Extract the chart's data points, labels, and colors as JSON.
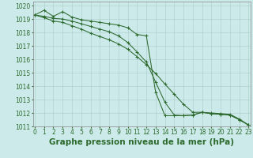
{
  "title": "Graphe pression niveau de la mer (hPa)",
  "bg_color": "#cceaea",
  "grid_color": "#aacaca",
  "line_color": "#2d6a2d",
  "x_min": 0,
  "x_max": 23,
  "y_min": 1011,
  "y_max": 1020,
  "series": [
    [
      1019.3,
      1019.65,
      1019.2,
      1019.55,
      1019.15,
      1018.95,
      1018.85,
      1018.75,
      1018.65,
      1018.55,
      1018.35,
      1017.85,
      1017.75,
      1013.55,
      1011.8,
      1011.8,
      1011.8,
      1011.85,
      1012.05,
      1011.95,
      1011.9,
      1011.85,
      1011.5,
      1011.1
    ],
    [
      1019.3,
      1019.2,
      1019.05,
      1019.0,
      1018.85,
      1018.65,
      1018.45,
      1018.25,
      1018.05,
      1017.75,
      1017.25,
      1016.55,
      1015.8,
      1014.3,
      1012.8,
      1011.85,
      1011.8,
      1011.85,
      1012.05,
      1011.95,
      1011.9,
      1011.85,
      1011.5,
      1011.1
    ],
    [
      1019.3,
      1019.1,
      1018.85,
      1018.75,
      1018.5,
      1018.25,
      1017.95,
      1017.7,
      1017.45,
      1017.15,
      1016.75,
      1016.2,
      1015.6,
      1014.95,
      1014.15,
      1013.4,
      1012.65,
      1012.05,
      1012.05,
      1012.0,
      1011.95,
      1011.9,
      1011.55,
      1011.1
    ]
  ],
  "tick_fontsize": 5.5,
  "xlabel_fontsize": 7.5
}
